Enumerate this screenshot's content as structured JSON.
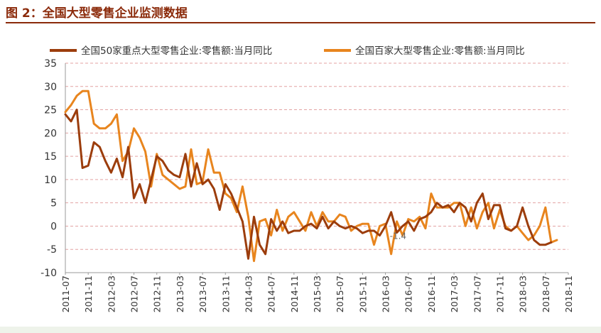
{
  "figure": {
    "title": "图 2：全国大型零售企业监测数据"
  },
  "chart_data": {
    "type": "line",
    "title": "",
    "xlabel": "",
    "ylabel": "",
    "ylim": [
      -10,
      35
    ],
    "yticks": [
      -10,
      -5,
      0,
      5,
      10,
      15,
      20,
      25,
      30,
      35
    ],
    "xtick_labels": [
      "2011-07",
      "2011-11",
      "2012-03",
      "2012-07",
      "2012-11",
      "2013-03",
      "2013-07",
      "2013-11",
      "2014-03",
      "2014-07",
      "2014-11",
      "2015-03",
      "2015-07",
      "2015-11",
      "2016-03",
      "2016-07",
      "2016-11",
      "2017-03",
      "2017-07",
      "2017-11",
      "2018-03",
      "2018-07",
      "2018-11"
    ],
    "x_start": "2011-07",
    "x_end": "2018-11",
    "grid": "horizontal dashed",
    "legend_position": "top",
    "annotation": "-1.4",
    "series": [
      {
        "name": "全国50家重点大型零售企业:零售额:当月同比",
        "color": "#9C3D0C",
        "points": [
          [
            "2011-07",
            24
          ],
          [
            "2011-08",
            22.5
          ],
          [
            "2011-09",
            25
          ],
          [
            "2011-10",
            12.5
          ],
          [
            "2011-11",
            13
          ],
          [
            "2011-12",
            18
          ],
          [
            "2012-01",
            17
          ],
          [
            "2012-02",
            14
          ],
          [
            "2012-03",
            11.5
          ],
          [
            "2012-04",
            14.5
          ],
          [
            "2012-05",
            10.5
          ],
          [
            "2012-06",
            17
          ],
          [
            "2012-07",
            6
          ],
          [
            "2012-08",
            9
          ],
          [
            "2012-09",
            5
          ],
          [
            "2012-10",
            10
          ],
          [
            "2012-11",
            15
          ],
          [
            "2012-12",
            14
          ],
          [
            "2013-01",
            12
          ],
          [
            "2013-02",
            11
          ],
          [
            "2013-03",
            10.5
          ],
          [
            "2013-04",
            15.5
          ],
          [
            "2013-05",
            8.5
          ],
          [
            "2013-06",
            13.5
          ],
          [
            "2013-07",
            9
          ],
          [
            "2013-08",
            10
          ],
          [
            "2013-09",
            8
          ],
          [
            "2013-10",
            3.5
          ],
          [
            "2013-11",
            9
          ],
          [
            "2013-12",
            7
          ],
          [
            "2014-01",
            4
          ],
          [
            "2014-02",
            1
          ],
          [
            "2014-03",
            -7
          ],
          [
            "2014-04",
            2
          ],
          [
            "2014-05",
            -4
          ],
          [
            "2014-06",
            -6
          ],
          [
            "2014-07",
            1.5
          ],
          [
            "2014-08",
            -1
          ],
          [
            "2014-09",
            1
          ],
          [
            "2014-10",
            -1.5
          ],
          [
            "2014-11",
            -1
          ],
          [
            "2014-12",
            -1
          ],
          [
            "2015-01",
            0
          ],
          [
            "2015-02",
            0.5
          ],
          [
            "2015-03",
            -0.5
          ],
          [
            "2015-04",
            2
          ],
          [
            "2015-05",
            -0.5
          ],
          [
            "2015-06",
            1
          ],
          [
            "2015-07",
            0
          ],
          [
            "2015-08",
            -0.5
          ],
          [
            "2015-09",
            0
          ],
          [
            "2015-10",
            -0.5
          ],
          [
            "2015-11",
            -1.5
          ],
          [
            "2015-12",
            -1
          ],
          [
            "2016-01",
            -1
          ],
          [
            "2016-02",
            -2
          ],
          [
            "2016-03",
            0
          ],
          [
            "2016-04",
            3
          ],
          [
            "2016-05",
            -1.4
          ],
          [
            "2016-06",
            0
          ],
          [
            "2016-07",
            1
          ],
          [
            "2016-08",
            -1
          ],
          [
            "2016-09",
            1.5
          ],
          [
            "2016-10",
            2
          ],
          [
            "2016-11",
            3
          ],
          [
            "2016-12",
            5
          ],
          [
            "2017-01",
            4
          ],
          [
            "2017-02",
            4.5
          ],
          [
            "2017-03",
            3
          ],
          [
            "2017-04",
            5
          ],
          [
            "2017-05",
            4
          ],
          [
            "2017-06",
            1
          ],
          [
            "2017-07",
            5
          ],
          [
            "2017-08",
            7
          ],
          [
            "2017-09",
            1.5
          ],
          [
            "2017-10",
            4.5
          ],
          [
            "2017-11",
            4.5
          ],
          [
            "2017-12",
            -0.5
          ],
          [
            "2018-01",
            -1
          ],
          [
            "2018-02",
            0
          ],
          [
            "2018-03",
            4
          ],
          [
            "2018-04",
            0
          ],
          [
            "2018-05",
            -3
          ],
          [
            "2018-06",
            -4
          ],
          [
            "2018-07",
            -4
          ],
          [
            "2018-08",
            -3.5
          ]
        ]
      },
      {
        "name": "全国百家大型零售企业:零售额:当月同比",
        "color": "#E8851E",
        "points": [
          [
            "2011-07",
            24.5
          ],
          [
            "2011-08",
            26
          ],
          [
            "2011-09",
            28
          ],
          [
            "2011-10",
            29
          ],
          [
            "2011-11",
            29
          ],
          [
            "2011-12",
            22
          ],
          [
            "2012-01",
            21
          ],
          [
            "2012-02",
            21
          ],
          [
            "2012-03",
            22
          ],
          [
            "2012-04",
            24
          ],
          [
            "2012-05",
            14
          ],
          [
            "2012-06",
            16
          ],
          [
            "2012-07",
            21
          ],
          [
            "2012-08",
            19
          ],
          [
            "2012-09",
            16
          ],
          [
            "2012-10",
            8.5
          ],
          [
            "2012-11",
            15.5
          ],
          [
            "2012-12",
            11
          ],
          [
            "2013-01",
            10
          ],
          [
            "2013-02",
            9
          ],
          [
            "2013-03",
            8
          ],
          [
            "2013-04",
            8.5
          ],
          [
            "2013-05",
            16.5
          ],
          [
            "2013-06",
            9
          ],
          [
            "2013-07",
            9.5
          ],
          [
            "2013-08",
            16.5
          ],
          [
            "2013-09",
            11.5
          ],
          [
            "2013-10",
            11.5
          ],
          [
            "2013-11",
            7
          ],
          [
            "2013-12",
            6
          ],
          [
            "2014-01",
            3
          ],
          [
            "2014-02",
            8.5
          ],
          [
            "2014-03",
            2
          ],
          [
            "2014-04",
            -7.5
          ],
          [
            "2014-05",
            1
          ],
          [
            "2014-06",
            1.5
          ],
          [
            "2014-07",
            -2
          ],
          [
            "2014-08",
            3.5
          ],
          [
            "2014-09",
            -1
          ],
          [
            "2014-10",
            2
          ],
          [
            "2014-11",
            3
          ],
          [
            "2014-12",
            1
          ],
          [
            "2015-01",
            -1
          ],
          [
            "2015-02",
            3
          ],
          [
            "2015-03",
            0
          ],
          [
            "2015-04",
            3
          ],
          [
            "2015-05",
            1
          ],
          [
            "2015-06",
            1
          ],
          [
            "2015-07",
            2.5
          ],
          [
            "2015-08",
            2
          ],
          [
            "2015-09",
            -1
          ],
          [
            "2015-10",
            0
          ],
          [
            "2015-11",
            0.5
          ],
          [
            "2015-12",
            0.5
          ],
          [
            "2016-01",
            -4
          ],
          [
            "2016-02",
            0
          ],
          [
            "2016-03",
            0.5
          ],
          [
            "2016-04",
            -6
          ],
          [
            "2016-05",
            1
          ],
          [
            "2016-06",
            -2
          ],
          [
            "2016-07",
            1.5
          ],
          [
            "2016-08",
            1
          ],
          [
            "2016-09",
            2
          ],
          [
            "2016-10",
            -0.5
          ],
          [
            "2016-11",
            7
          ],
          [
            "2016-12",
            4
          ],
          [
            "2017-01",
            4
          ],
          [
            "2017-02",
            4
          ],
          [
            "2017-03",
            5
          ],
          [
            "2017-04",
            5
          ],
          [
            "2017-05",
            0
          ],
          [
            "2017-06",
            4
          ],
          [
            "2017-07",
            -0.5
          ],
          [
            "2017-08",
            3
          ],
          [
            "2017-09",
            5
          ],
          [
            "2017-10",
            -0.5
          ],
          [
            "2017-11",
            3.5
          ],
          [
            "2017-12",
            0
          ],
          [
            "2018-01",
            -1
          ],
          [
            "2018-02",
            0
          ],
          [
            "2018-03",
            -1.5
          ],
          [
            "2018-04",
            -3
          ],
          [
            "2018-05",
            -2
          ],
          [
            "2018-06",
            0
          ],
          [
            "2018-07",
            4
          ],
          [
            "2018-08",
            -3.5
          ],
          [
            "2018-09",
            -3
          ]
        ]
      }
    ]
  }
}
